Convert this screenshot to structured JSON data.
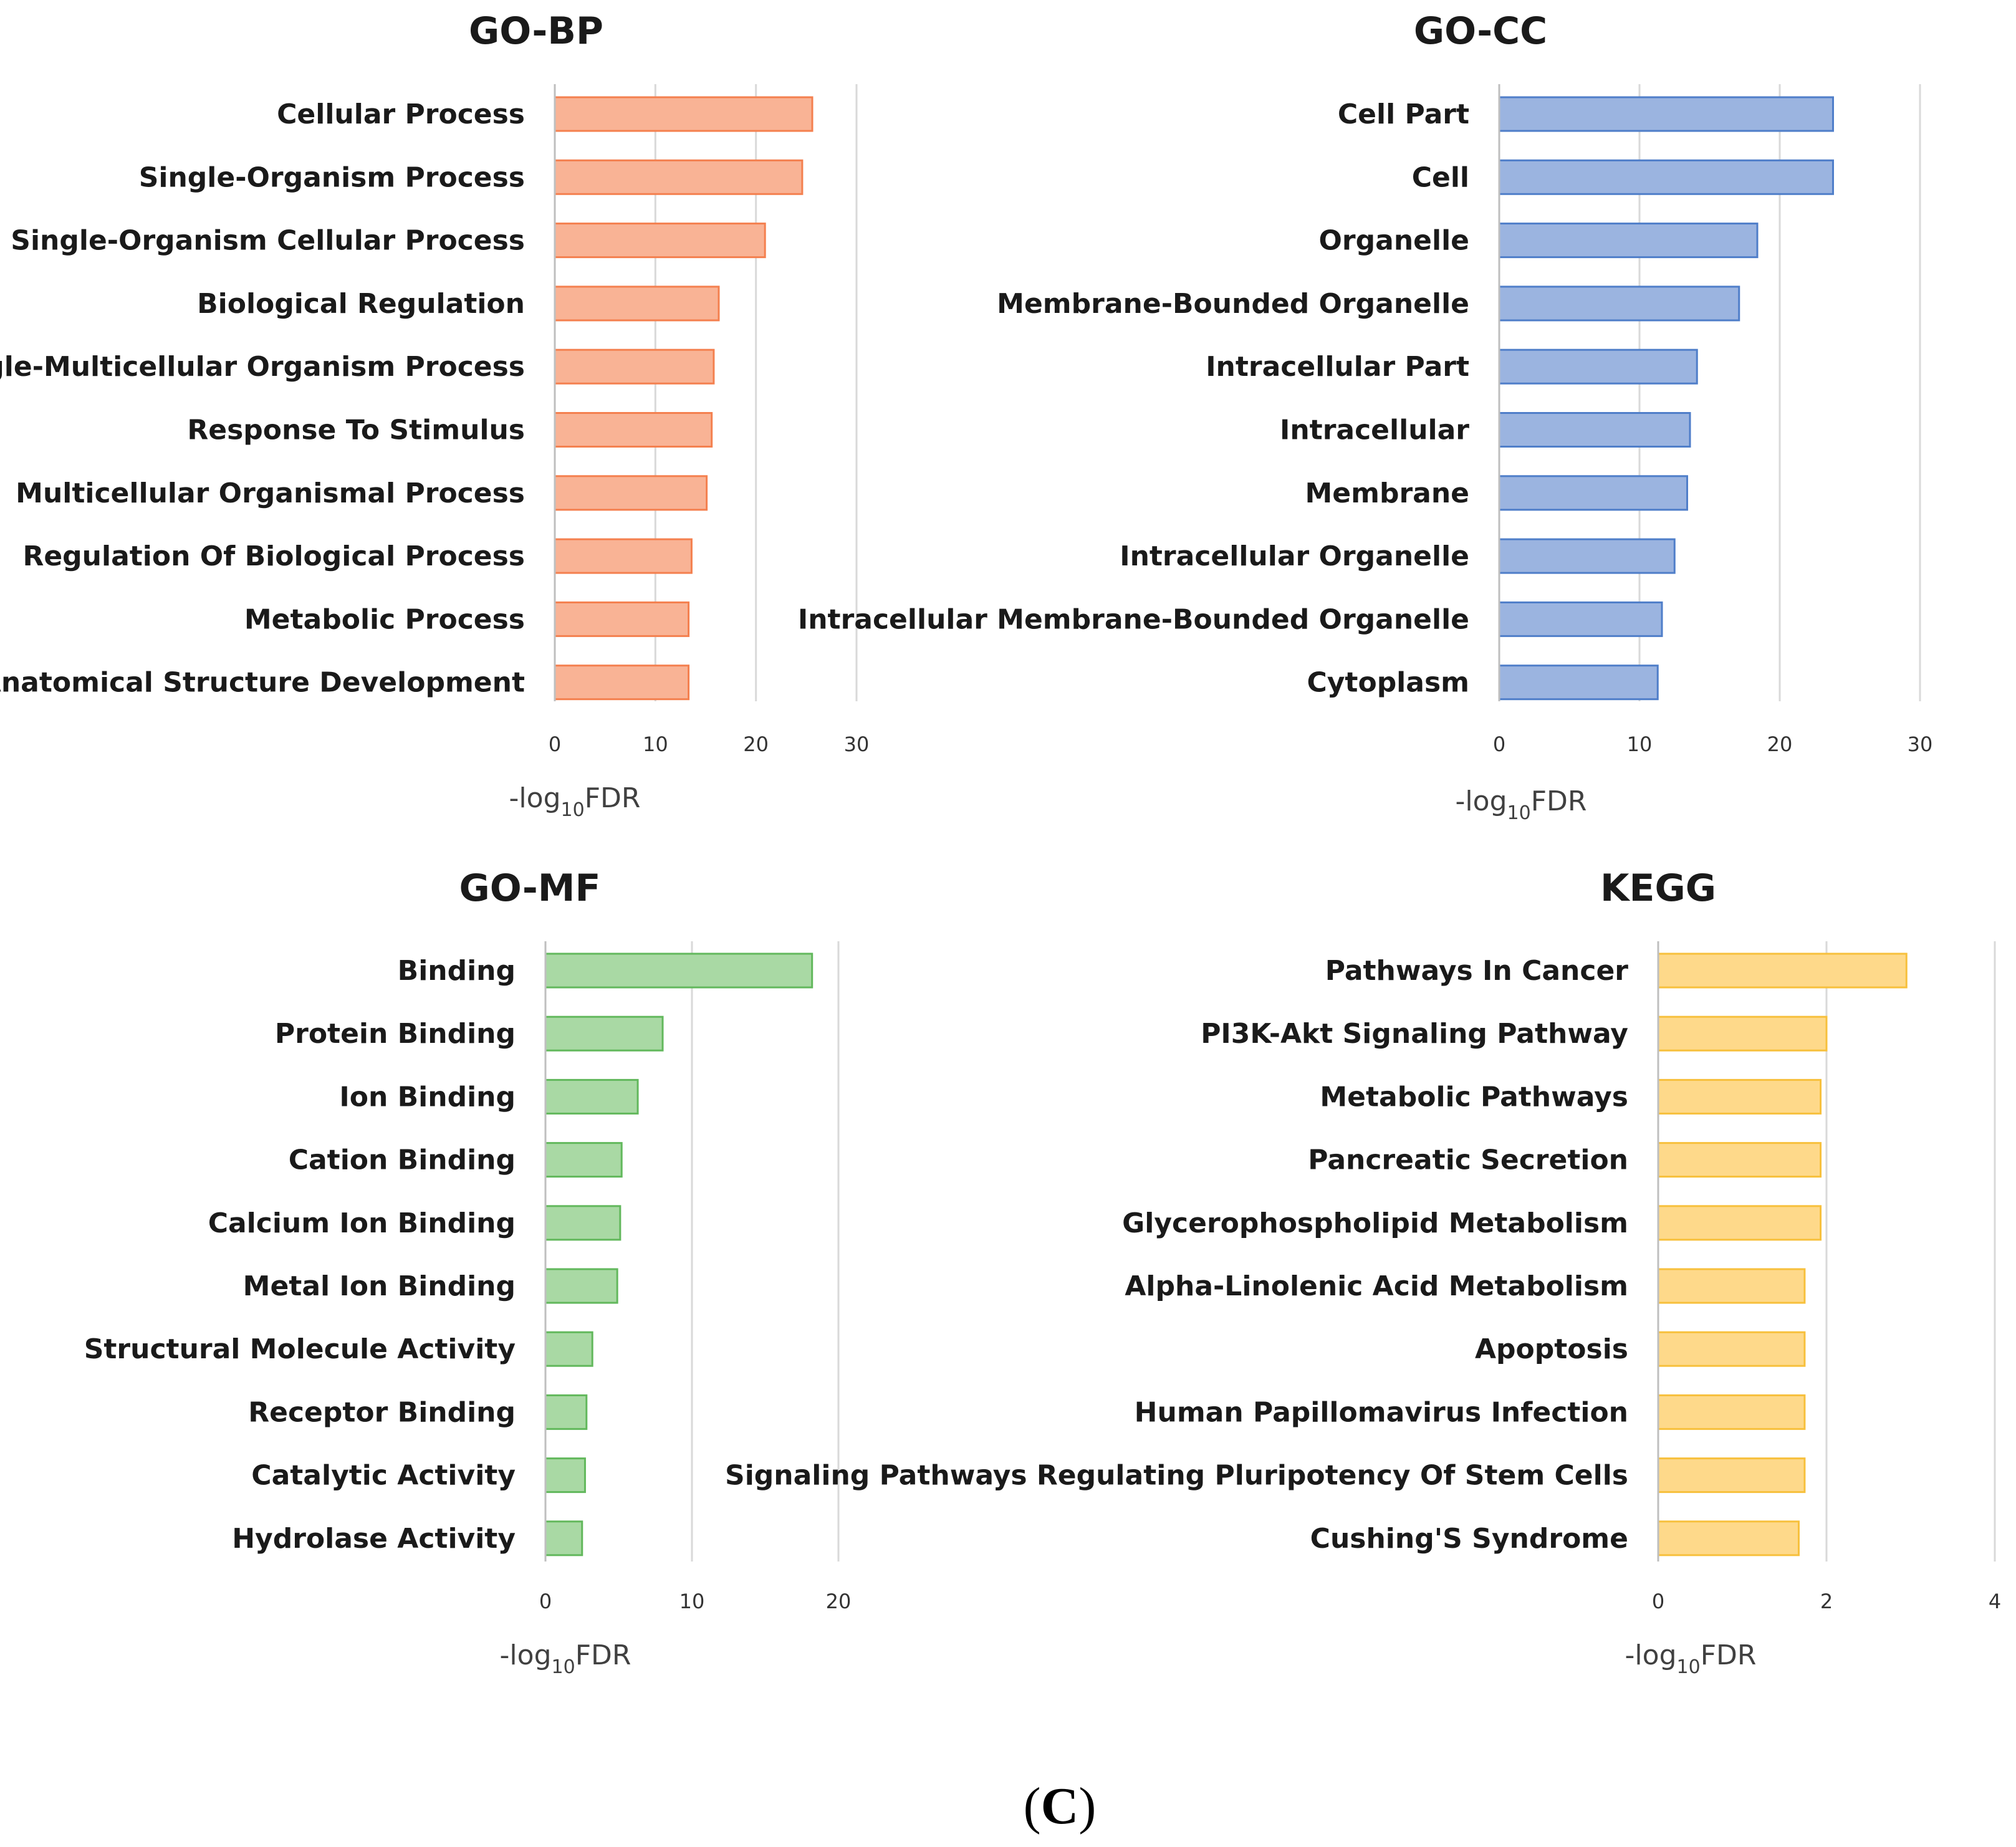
{
  "figure_label": {
    "open": "(",
    "letter": "C",
    "close": ")"
  },
  "chart_data": [
    {
      "id": "bp",
      "type": "bar",
      "orientation": "horizontal",
      "title": "GO-BP",
      "xlabel": {
        "main": "-log",
        "sub": "10",
        "tail": "FDR"
      },
      "xlim": [
        0,
        30
      ],
      "xticks": [
        0,
        10,
        20,
        30
      ],
      "grid": true,
      "colors": {
        "fill": "#f9b395",
        "stroke": "#f4804f"
      },
      "categories": [
        "Cellular Process",
        "Single-Organism Process",
        "Single-Organism Cellular Process",
        "Biological Regulation",
        "Single-Multicellular Organism Process",
        "Response To Stimulus",
        "Multicellular Organismal Process",
        "Regulation Of Biological Process",
        "Metabolic Process",
        "Anatomical Structure Development"
      ],
      "values": [
        25.6,
        24.6,
        20.9,
        16.3,
        15.8,
        15.6,
        15.1,
        13.6,
        13.3,
        13.3
      ]
    },
    {
      "id": "cc",
      "type": "bar",
      "orientation": "horizontal",
      "title": "GO-CC",
      "xlabel": {
        "main": "-log",
        "sub": "10",
        "tail": "FDR"
      },
      "xlim": [
        0,
        30
      ],
      "xticks": [
        0,
        10,
        20,
        30
      ],
      "grid": true,
      "colors": {
        "fill": "#9bb4e0",
        "stroke": "#4f7ec9"
      },
      "categories": [
        "Cell Part",
        "Cell",
        "Organelle",
        "Membrane-Bounded Organelle",
        "Intracellular Part",
        "Intracellular",
        "Membrane",
        "Intracellular Organelle",
        "Intracellular Membrane-Bounded Organelle",
        "Cytoplasm"
      ],
      "values": [
        23.8,
        23.8,
        18.4,
        17.1,
        14.1,
        13.6,
        13.4,
        12.5,
        11.6,
        11.3
      ]
    },
    {
      "id": "mf",
      "type": "bar",
      "orientation": "horizontal",
      "title": "GO-MF",
      "xlabel": {
        "main": "-log",
        "sub": "10",
        "tail": "FDR"
      },
      "xlim": [
        0,
        20
      ],
      "xticks": [
        0,
        10,
        20
      ],
      "grid": true,
      "colors": {
        "fill": "#a9d9a4",
        "stroke": "#62b85c"
      },
      "categories": [
        "Binding",
        "Protein Binding",
        "Ion Binding",
        "Cation Binding",
        "Calcium Ion Binding",
        "Metal Ion Binding",
        "Structural Molecule Activity",
        "Receptor Binding",
        "Catalytic Activity",
        "Hydrolase Activity"
      ],
      "values": [
        18.2,
        8.0,
        6.3,
        5.2,
        5.1,
        4.9,
        3.2,
        2.8,
        2.7,
        2.5
      ]
    },
    {
      "id": "kegg",
      "type": "bar",
      "orientation": "horizontal",
      "title": "KEGG",
      "xlabel": {
        "main": "-log",
        "sub": "10",
        "tail": "FDR"
      },
      "xlim": [
        0,
        4
      ],
      "xticks": [
        0,
        2,
        4
      ],
      "grid": true,
      "colors": {
        "fill": "#fed98a",
        "stroke": "#f7c03c"
      },
      "categories": [
        "Pathways In Cancer",
        "PI3K-Akt Signaling Pathway",
        "Metabolic Pathways",
        "Pancreatic Secretion",
        "Glycerophospholipid Metabolism",
        "Alpha-Linolenic Acid Metabolism",
        "Apoptosis",
        "Human Papillomavirus Infection",
        "Signaling Pathways Regulating Pluripotency Of Stem Cells",
        "Cushing'S Syndrome"
      ],
      "values": [
        2.95,
        2.0,
        1.93,
        1.93,
        1.93,
        1.74,
        1.74,
        1.74,
        1.74,
        1.67
      ]
    }
  ]
}
